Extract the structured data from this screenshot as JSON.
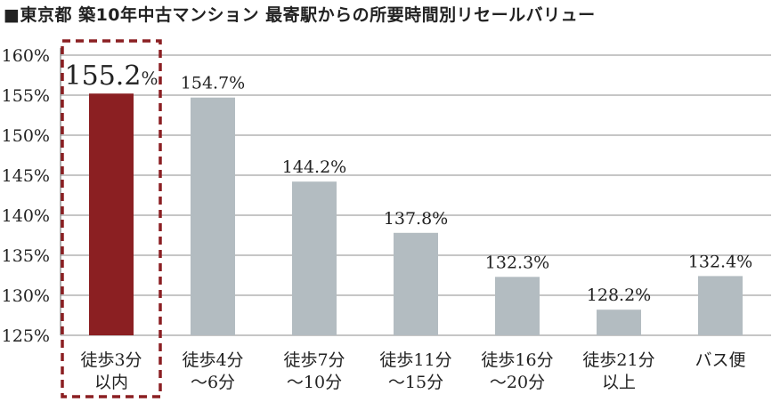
{
  "title": "■東京都 築10年中古マンション 最寄駅からの所要時間別リセールバリュー",
  "chart_data": {
    "type": "bar",
    "categories": [
      [
        "徒歩3分",
        "以内"
      ],
      [
        "徒歩4分",
        "～6分"
      ],
      [
        "徒歩7分",
        "～10分"
      ],
      [
        "徒歩11分",
        "～15分"
      ],
      [
        "徒歩16分",
        "～20分"
      ],
      [
        "徒歩21分",
        "以上"
      ],
      [
        "バス便"
      ]
    ],
    "values": [
      155.2,
      154.7,
      144.2,
      137.8,
      132.3,
      128.2,
      132.4
    ],
    "value_labels": [
      "155.2%",
      "154.7%",
      "144.2%",
      "137.8%",
      "132.3%",
      "128.2%",
      "132.4%"
    ],
    "highlight_index": 0,
    "ylim": [
      125,
      160
    ],
    "yticks": [
      125,
      130,
      135,
      140,
      145,
      150,
      155,
      160
    ],
    "ytick_labels": [
      "125%",
      "130%",
      "135%",
      "140%",
      "145%",
      "150%",
      "155%",
      "160%"
    ],
    "grid": true,
    "colors": {
      "highlight": "#8b1f22",
      "default": "#b3bcc1",
      "grid": "#8c8c8c",
      "frame": "#8b1f22"
    }
  }
}
